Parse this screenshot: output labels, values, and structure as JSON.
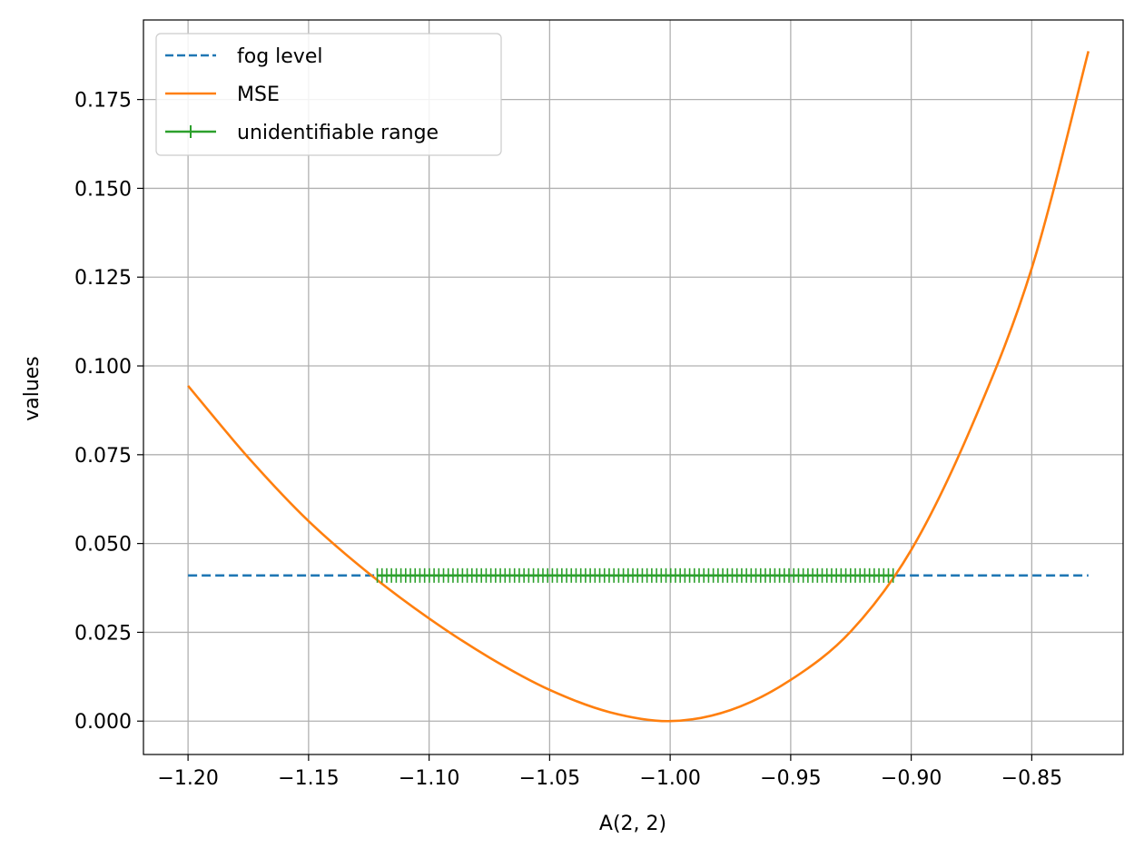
{
  "colors": {
    "fog": "#1f77b4",
    "mse": "#ff7f0e",
    "range": "#2ca02c",
    "grid": "#b0b0b0",
    "legend_border": "#cccccc"
  },
  "chart_data": {
    "type": "line",
    "title": "",
    "xlabel": "A(2, 2)",
    "ylabel": "values",
    "xlim": [
      -1.2185,
      -0.8121
    ],
    "ylim": [
      -0.0094,
      0.1974
    ],
    "xticks": [
      -1.2,
      -1.15,
      -1.1,
      -1.05,
      -1.0,
      -0.95,
      -0.9,
      -0.85
    ],
    "xtick_labels": [
      "−1.20",
      "−1.15",
      "−1.10",
      "−1.05",
      "−1.00",
      "−0.95",
      "−0.90",
      "−0.85"
    ],
    "yticks": [
      0.0,
      0.025,
      0.05,
      0.075,
      0.1,
      0.125,
      0.15,
      0.175
    ],
    "ytick_labels": [
      "0.000",
      "0.025",
      "0.050",
      "0.075",
      "0.100",
      "0.125",
      "0.150",
      "0.175"
    ],
    "grid": true,
    "legend_position": "upper-left",
    "series": [
      {
        "name": "fog level",
        "style": "dashed",
        "x": [
          -1.2,
          -0.8265
        ],
        "y": [
          0.041,
          0.041
        ]
      },
      {
        "name": "MSE",
        "style": "solid",
        "x": [
          -1.2,
          -1.175,
          -1.15,
          -1.125,
          -1.1,
          -1.075,
          -1.05,
          -1.025,
          -1.0,
          -0.975,
          -0.95,
          -0.925,
          -0.9,
          -0.875,
          -0.85,
          -0.8265
        ],
        "y": [
          0.0944,
          0.0742,
          0.0563,
          0.0416,
          0.0289,
          0.0179,
          0.0088,
          0.0025,
          0.0,
          0.0031,
          0.0116,
          0.0253,
          0.0482,
          0.0829,
          0.1275,
          0.1886
        ]
      },
      {
        "name": "unidentifiable range",
        "style": "solid-plus-markers",
        "x": [
          -1.1215,
          -0.9075
        ],
        "y": [
          0.041,
          0.041
        ],
        "marker_count": 110
      }
    ]
  }
}
